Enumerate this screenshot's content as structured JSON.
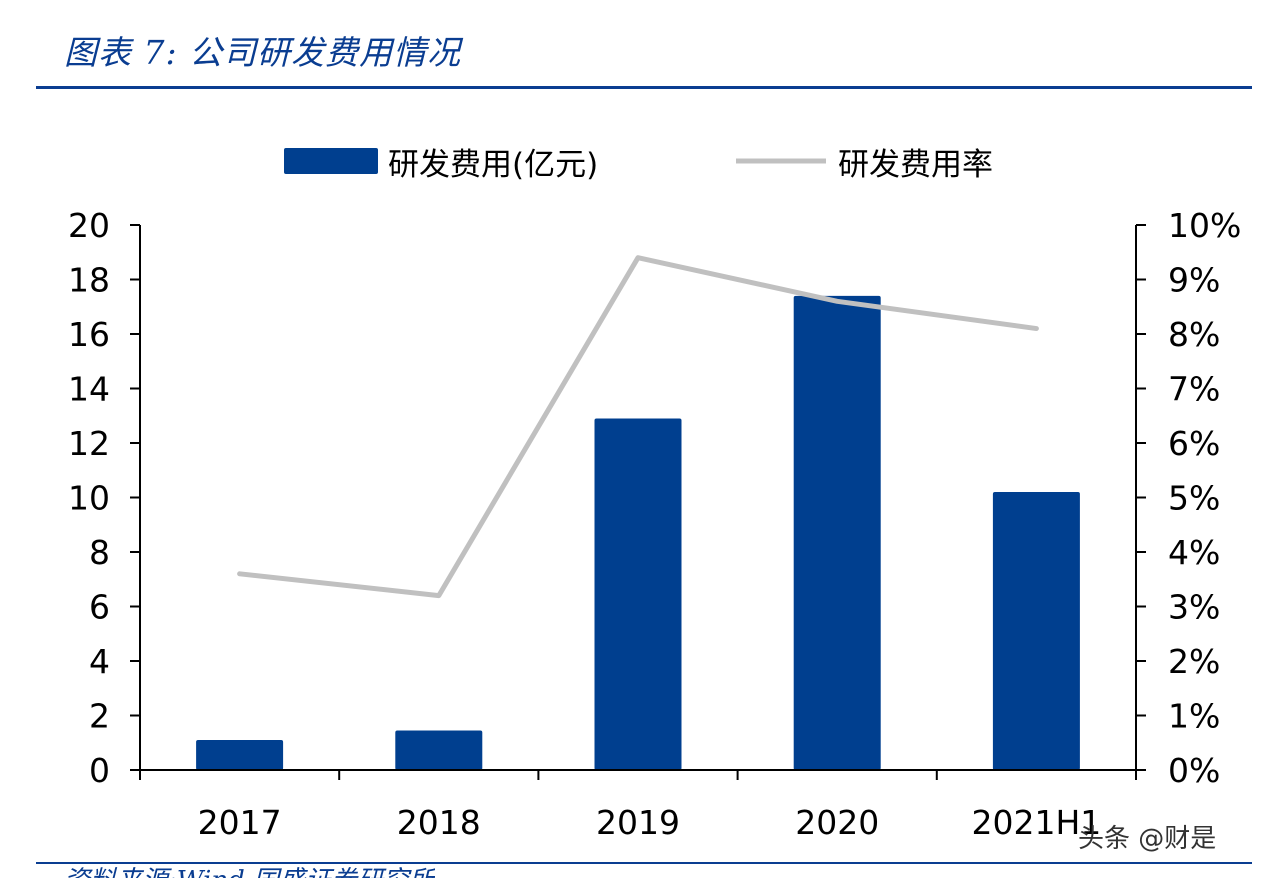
{
  "header": {
    "title": "图表 7:  公司研发费用情况"
  },
  "footer": {
    "source": "资料来源:Wind,国盛证券研究所",
    "watermark": "头条 @财是"
  },
  "colors": {
    "bar": "#003f8f",
    "line": "#c0c0c0",
    "axis": "#000000",
    "title": "#0a3d91"
  },
  "chart_data": {
    "type": "bar",
    "categories": [
      "2017",
      "2018",
      "2019",
      "2020",
      "2021H1"
    ],
    "series": [
      {
        "name": "研发费用(亿元)",
        "type": "bar",
        "axis": "left",
        "values": [
          1.1,
          1.45,
          12.9,
          17.4,
          10.2
        ]
      },
      {
        "name": "研发费用率",
        "type": "line",
        "axis": "right",
        "values": [
          3.6,
          3.2,
          9.4,
          8.6,
          8.1
        ]
      }
    ],
    "y_left": {
      "ylim": [
        0,
        20
      ],
      "ticks": [
        "0",
        "2",
        "4",
        "6",
        "8",
        "10",
        "12",
        "14",
        "16",
        "18",
        "20"
      ]
    },
    "y_right": {
      "ylim": [
        0,
        10
      ],
      "ticks": [
        "0%",
        "1%",
        "2%",
        "3%",
        "4%",
        "5%",
        "6%",
        "7%",
        "8%",
        "9%",
        "10%"
      ]
    },
    "grid": false,
    "legend": "top-center"
  }
}
